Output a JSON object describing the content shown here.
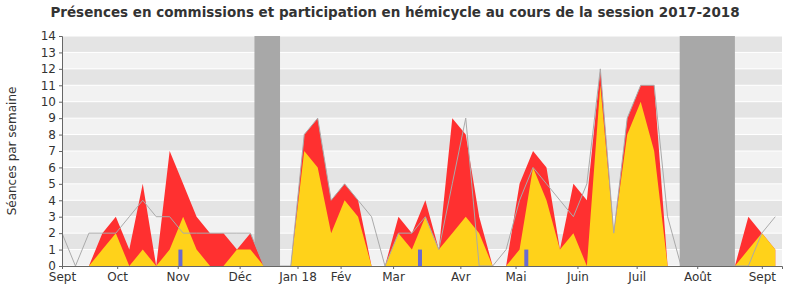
{
  "chart_data": {
    "type": "area",
    "title": "Présences en commissions et participation en hémicycle au cours de la session 2017-2018",
    "y_label": "Séances par semaine",
    "x": [
      0,
      1,
      2,
      3,
      4,
      5,
      6,
      7,
      8,
      9,
      10,
      11,
      12,
      13,
      14,
      15,
      16,
      17,
      18,
      19,
      20,
      21,
      22,
      23,
      24,
      25,
      26,
      27,
      28,
      29,
      30,
      31,
      32,
      33,
      34,
      35,
      36,
      37,
      38,
      39,
      40,
      41,
      42,
      43,
      44,
      45,
      46,
      47,
      48,
      49,
      50,
      51,
      52,
      53
    ],
    "xlim": [
      0,
      53.5
    ],
    "xticks": [
      {
        "value": 0,
        "label": "Sept"
      },
      {
        "value": 4.1,
        "label": "Oct"
      },
      {
        "value": 8.6,
        "label": "Nov"
      },
      {
        "value": 13.2,
        "label": "Déc"
      },
      {
        "value": 17.5,
        "label": "Jan 18"
      },
      {
        "value": 20.7,
        "label": "Fév"
      },
      {
        "value": 24.6,
        "label": "Mar"
      },
      {
        "value": 29.6,
        "label": "Avr"
      },
      {
        "value": 33.7,
        "label": "Mai"
      },
      {
        "value": 38.3,
        "label": "Juin"
      },
      {
        "value": 42.7,
        "label": "Juil"
      },
      {
        "value": 47.2,
        "label": "Août"
      },
      {
        "value": 52,
        "label": "Sept"
      }
    ],
    "ylim": [
      0,
      14
    ],
    "yticks": [
      0,
      1,
      2,
      3,
      4,
      5,
      6,
      7,
      8,
      9,
      10,
      11,
      12,
      13,
      14
    ],
    "grid": true,
    "holidays": [
      [
        14.3,
        16.2
      ],
      [
        45.9,
        50
      ]
    ],
    "series": [
      {
        "type": "area",
        "color": "#ff3030",
        "values": [
          0,
          0,
          0,
          2,
          3,
          1,
          5,
          0,
          7,
          5,
          3,
          2,
          2,
          1,
          2,
          0,
          0,
          0,
          8,
          9,
          4,
          5,
          4,
          0,
          0,
          3,
          2,
          4,
          1,
          9,
          8,
          3,
          0,
          0,
          5,
          7,
          6,
          1,
          5,
          4,
          12,
          2,
          9,
          11,
          11,
          0,
          0,
          0,
          0,
          0,
          0,
          3,
          2,
          1
        ]
      },
      {
        "type": "area",
        "color": "#ffd21a",
        "values": [
          0,
          0,
          0,
          1,
          2,
          0,
          1,
          0,
          1,
          3,
          1,
          0,
          0,
          1,
          1,
          0,
          0,
          0,
          7,
          6,
          2,
          4,
          3,
          0,
          0,
          2,
          1,
          3,
          1,
          2,
          3,
          2,
          0,
          0,
          1,
          6,
          4,
          1,
          2,
          0,
          11,
          2,
          8,
          10,
          7,
          0,
          0,
          0,
          0,
          0,
          0,
          1,
          2,
          1
        ]
      },
      {
        "type": "line",
        "color": "#aaaaaa",
        "values": [
          2,
          0,
          2,
          2,
          2,
          3,
          4,
          3,
          3,
          2,
          2,
          2,
          2,
          2,
          2,
          0,
          0,
          0,
          8,
          9,
          4,
          5,
          4,
          3,
          0,
          2,
          2,
          3,
          1,
          5,
          9,
          0,
          0,
          1,
          4,
          6,
          5,
          4,
          3,
          5,
          12,
          2,
          9,
          11,
          11,
          3,
          0,
          0,
          0,
          0,
          0,
          0,
          2,
          3
        ]
      },
      {
        "type": "bar",
        "color": "#6a6ad0",
        "x": [
          8.8,
          26.6,
          34.5
        ],
        "values": [
          1,
          1,
          1
        ]
      }
    ]
  }
}
